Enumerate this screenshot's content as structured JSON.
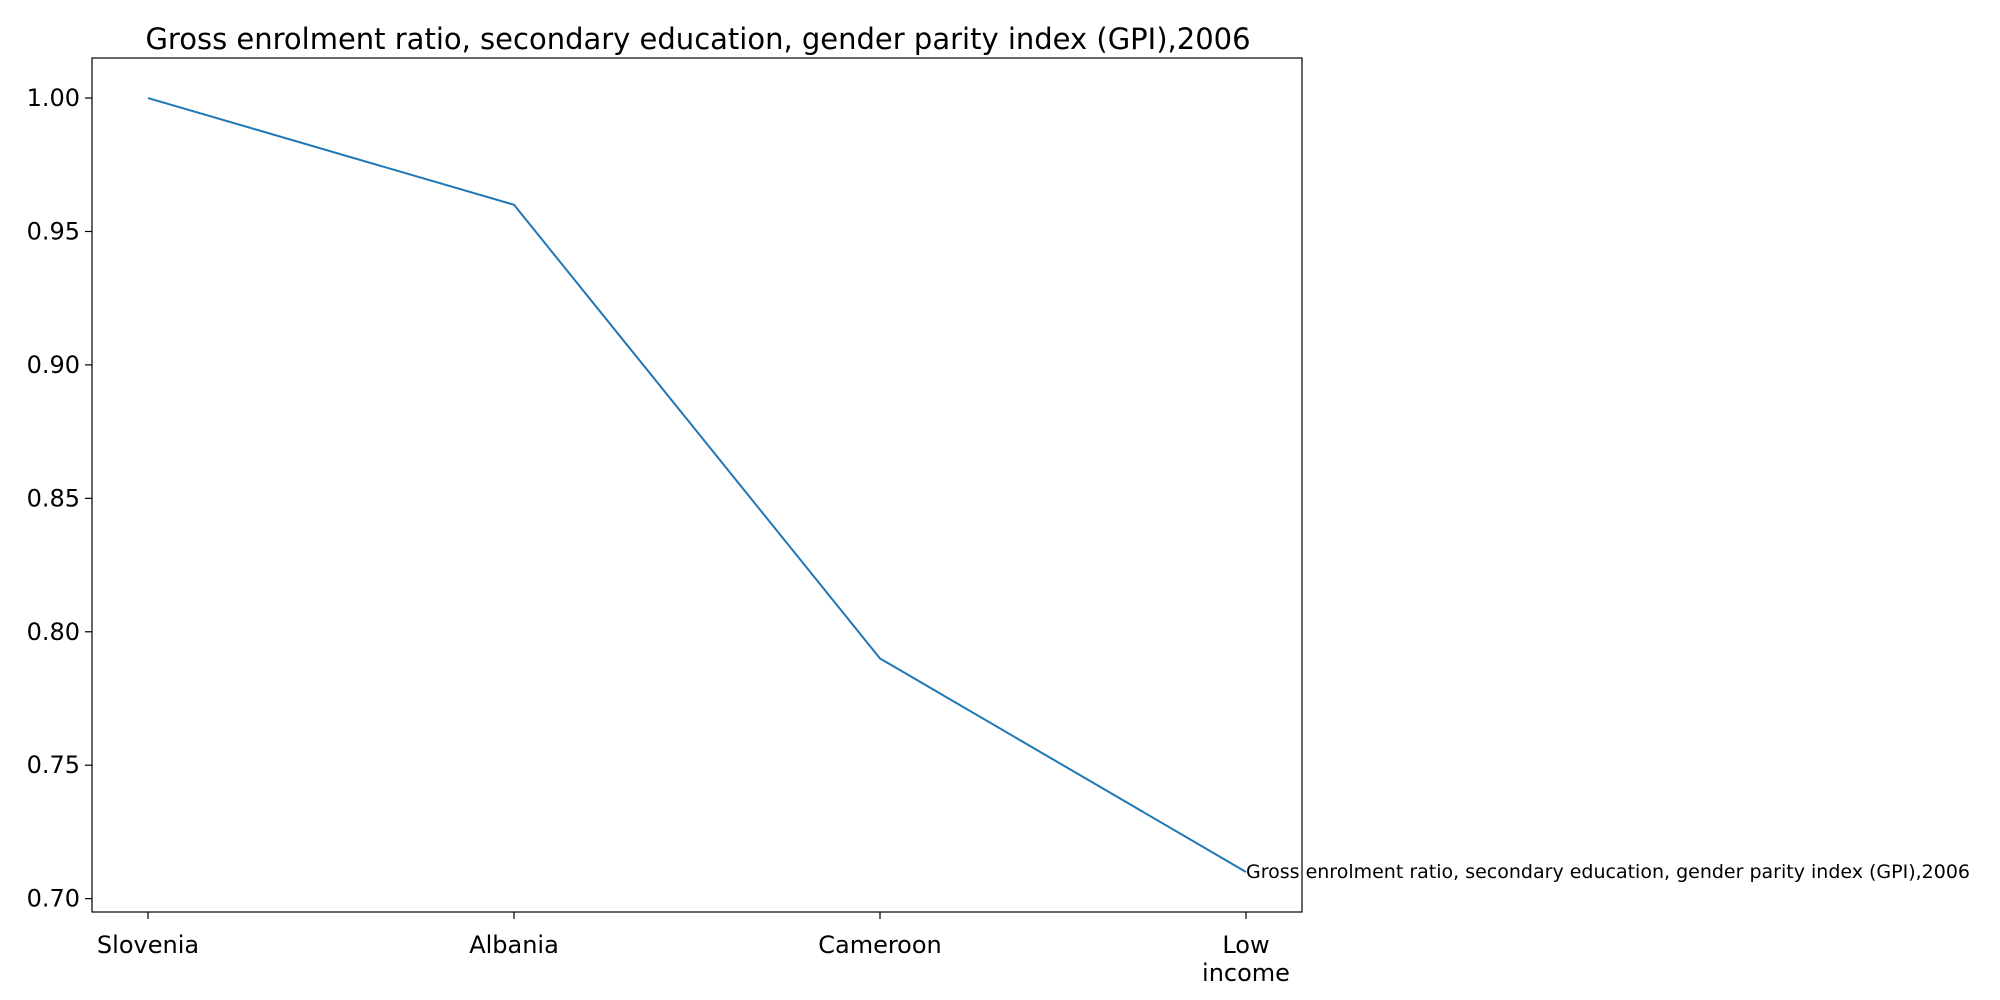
{
  "chart_data": {
    "type": "line",
    "title": "Gross enrolment ratio, secondary education, gender parity index (GPI),2006",
    "xlabel": "",
    "ylabel": "",
    "categories": [
      "Slovenia",
      "Albania",
      "Cameroon",
      "Low income"
    ],
    "series": [
      {
        "name": "Gross enrolment ratio, secondary education, gender parity index (GPI),2006",
        "values": [
          1.0,
          0.96,
          0.79,
          0.71
        ],
        "color": "#1f77b4"
      }
    ],
    "ylim": [
      0.695,
      1.015
    ],
    "yticks": [
      "0.70",
      "0.75",
      "0.80",
      "0.85",
      "0.90",
      "0.95",
      "1.00"
    ],
    "grid": false,
    "legend": "none"
  }
}
